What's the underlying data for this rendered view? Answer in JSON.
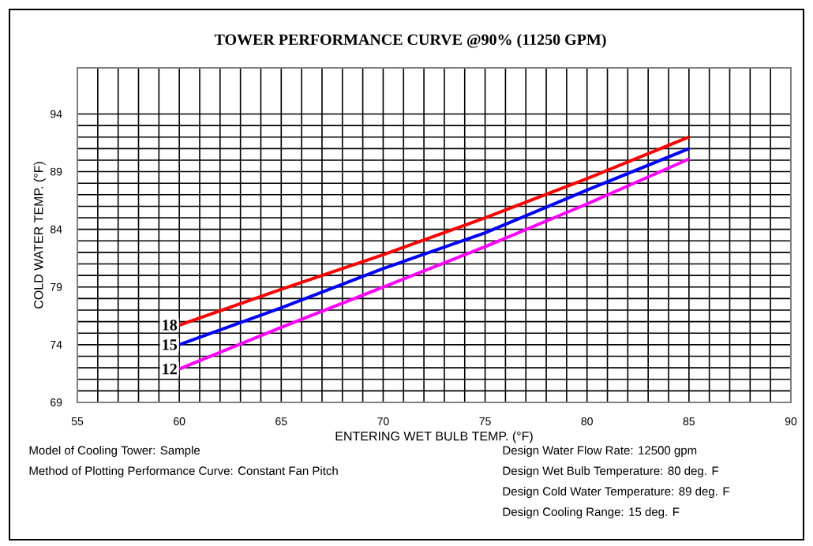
{
  "chart_data": {
    "type": "line",
    "title": "TOWER PERFORMANCE CURVE @90% (11250 GPM)",
    "xlabel": "ENTERING WET BULB TEMP. (°F)",
    "ylabel": "COLD WATER TEMP. (°F)",
    "x": [
      60,
      65,
      70,
      75,
      80,
      85
    ],
    "series": [
      {
        "name": "18",
        "color": "#ff0000",
        "values": [
          75.7,
          78.8,
          81.8,
          85.0,
          88.4,
          92.0
        ]
      },
      {
        "name": "15",
        "color": "#0000ff",
        "values": [
          74.0,
          77.2,
          80.6,
          83.7,
          87.4,
          91.0
        ]
      },
      {
        "name": "12",
        "color": "#ff00ff",
        "values": [
          71.9,
          75.5,
          79.0,
          82.5,
          86.2,
          90.1
        ]
      }
    ],
    "xlim": [
      55,
      90
    ],
    "xticks": [
      55,
      60,
      65,
      70,
      75,
      80,
      85,
      90
    ],
    "ylim": [
      69,
      98
    ],
    "yticks": [
      69,
      74,
      79,
      84,
      89,
      94
    ],
    "grid": true,
    "legend": false,
    "marker": "none",
    "line_style": "solid",
    "annotations": [
      "Model of Cooling Tower: Sample",
      "Method of Plotting Performance Curve: Constant Fan Pitch",
      "Design Water Flow Rate: 12500 gpm",
      "Design Wet Bulb Temperature: 80 deg. F",
      "Design Cold Water Temperature: 89 deg. F",
      "Design Cooling Range: 15 deg. F"
    ]
  }
}
